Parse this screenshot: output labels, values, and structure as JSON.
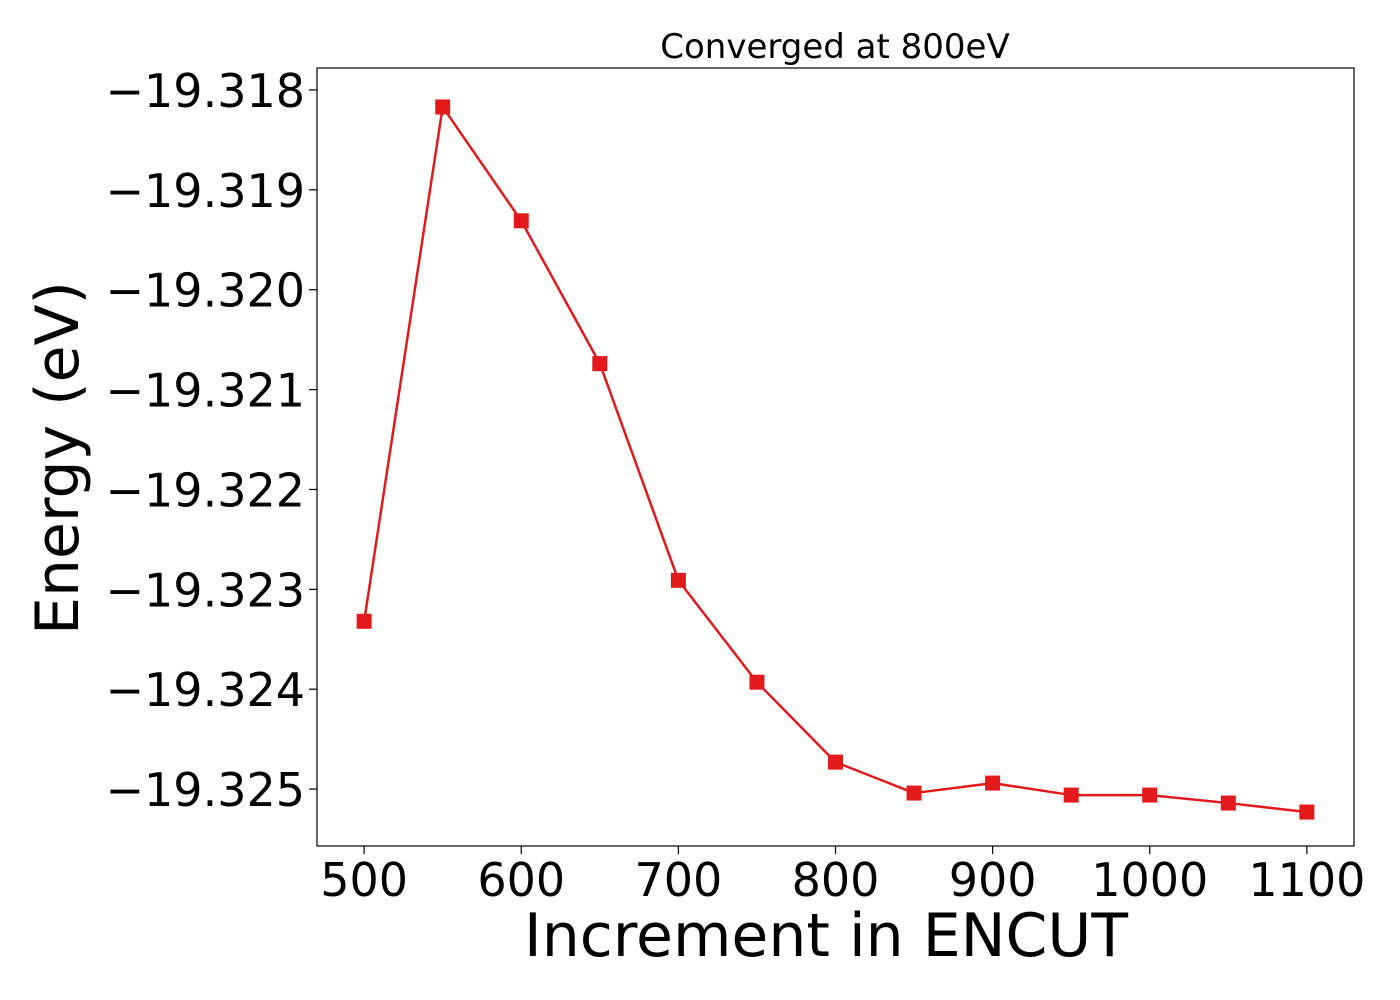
{
  "chart_data": {
    "type": "line",
    "title": "Converged at 800eV",
    "xlabel": "Increment in ENCUT",
    "ylabel": "Energy (eV)",
    "xlim": [
      470,
      1130
    ],
    "ylim": [
      -19.32557,
      -19.31778
    ],
    "x_ticks": [
      500,
      600,
      700,
      800,
      900,
      1000,
      1100
    ],
    "x_tick_labels": [
      "500",
      "600",
      "700",
      "800",
      "900",
      "1000",
      "1100"
    ],
    "y_ticks": [
      -19.318,
      -19.319,
      -19.32,
      -19.321,
      -19.322,
      -19.323,
      -19.324,
      -19.325
    ],
    "y_tick_labels": [
      "−19.318",
      "−19.319",
      "−19.320",
      "−19.321",
      "−19.322",
      "−19.323",
      "−19.324",
      "−19.325"
    ],
    "grid": false,
    "series": [
      {
        "color": "#e31a1c",
        "marker": "square",
        "x": [
          500,
          550,
          600,
          650,
          700,
          750,
          800,
          850,
          900,
          950,
          1000,
          1050,
          1100
        ],
        "y": [
          -19.32332,
          -19.31817,
          -19.31931,
          -19.32074,
          -19.32291,
          -19.32393,
          -19.32473,
          -19.32504,
          -19.32494,
          -19.32506,
          -19.32506,
          -19.32514,
          -19.32523
        ]
      }
    ]
  }
}
